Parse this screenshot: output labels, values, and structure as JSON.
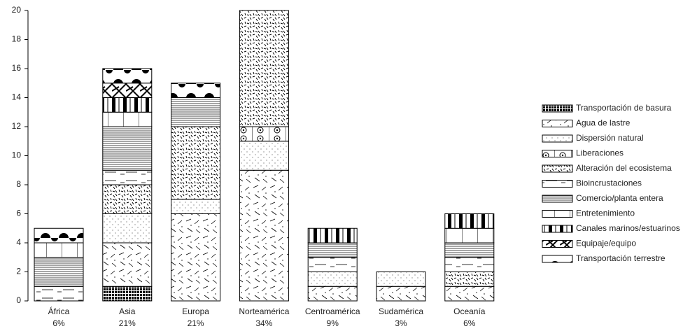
{
  "chart_data": {
    "type": "stacked_bar",
    "categories": [
      "África",
      "Asia",
      "Europa",
      "Norteamérica",
      "Centroamérica",
      "Sudamérica",
      "Oceanía"
    ],
    "category_shares": [
      "6%",
      "21%",
      "21%",
      "34%",
      "9%",
      "3%",
      "6%"
    ],
    "series": [
      {
        "name": "Transportación de basura",
        "values": [
          0,
          1,
          0,
          0,
          0,
          0,
          0
        ]
      },
      {
        "name": "Agua de lastre",
        "values": [
          0,
          3,
          6,
          9,
          1,
          1,
          1
        ]
      },
      {
        "name": "Dispersión natural",
        "values": [
          0,
          2,
          1,
          2,
          1,
          1,
          0
        ]
      },
      {
        "name": "Liberaciones",
        "values": [
          0,
          0,
          0,
          1,
          0,
          0,
          0
        ]
      },
      {
        "name": "Alteración del ecosistema",
        "values": [
          0,
          2,
          5,
          8,
          0,
          0,
          1
        ]
      },
      {
        "name": "Bioincrustaciones",
        "values": [
          1,
          1,
          0,
          0,
          1,
          0,
          1
        ]
      },
      {
        "name": "Comercio/planta entera",
        "values": [
          2,
          3,
          2,
          0,
          1,
          0,
          1
        ]
      },
      {
        "name": "Entretenimiento",
        "values": [
          1,
          1,
          0,
          0,
          0,
          0,
          1
        ]
      },
      {
        "name": "Canales marinos/estuarinos",
        "values": [
          0,
          1,
          0,
          0,
          1,
          0,
          1
        ]
      },
      {
        "name": "Equipaje/equipo",
        "values": [
          0,
          1,
          0,
          0,
          0,
          0,
          0
        ]
      },
      {
        "name": "Transportación terrestre",
        "values": [
          1,
          1,
          1,
          0,
          0,
          0,
          0
        ]
      }
    ],
    "ylim": [
      0,
      20
    ],
    "yticks": [
      0,
      2,
      4,
      6,
      8,
      10,
      12,
      14,
      16,
      18,
      20
    ]
  }
}
